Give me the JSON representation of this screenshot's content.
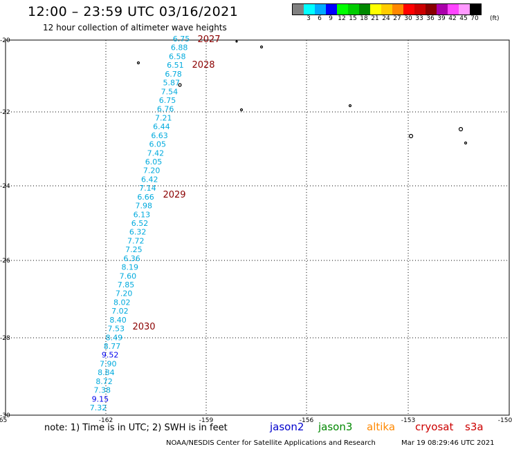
{
  "title": "12:00 – 23:59 UTC 03/16/2021",
  "subtitle": "12 hour collection of altimeter wave heights",
  "legend": {
    "colors": [
      "#808080",
      "#00ffff",
      "#00aaff",
      "#0000ff",
      "#00ff00",
      "#00cc00",
      "#008800",
      "#ffff00",
      "#ffcc00",
      "#ff8800",
      "#ff0000",
      "#cc0000",
      "#880000",
      "#aa00aa",
      "#ff44ff",
      "#ff99ff",
      "#000000"
    ],
    "labels": [
      "",
      "3",
      "6",
      "9",
      "12",
      "15",
      "18",
      "21",
      "24",
      "27",
      "30",
      "33",
      "36",
      "39",
      "42",
      "45",
      "70"
    ],
    "unit": "(ft)"
  },
  "axes": {
    "lon_labels": [
      "-165",
      "-162",
      "-159",
      "-156",
      "-153",
      "-150"
    ],
    "lat_labels": [
      "-20",
      "-22",
      "-24",
      "-26",
      "-28",
      "-30"
    ]
  },
  "time_labels": [
    "2027",
    "2028",
    "2029",
    "2030"
  ],
  "swh_values": [
    "6.75",
    "6.88",
    "6.58",
    "6.51",
    "6.78",
    "5.87",
    "7.54",
    "6.75",
    "6.76",
    "7.21",
    "6.44",
    "6.63",
    "6.05",
    "7.42",
    "6.05",
    "7.20",
    "6.42",
    "7.14",
    "6.66",
    "7.98",
    "6.13",
    "6.52",
    "6.32",
    "7.72",
    "7.25",
    "6.36",
    "8.19",
    "7.60",
    "7.85",
    "7.20",
    "8.02",
    "7.02",
    "8.40",
    "7.53",
    "8.49",
    "8.77",
    "9.52",
    "7.90",
    "8.84",
    "8.72",
    "7.38",
    "9.15",
    "7.32"
  ],
  "note": "note: 1) Time is in UTC; 2) SWH is in feet",
  "satellites": [
    "jason2",
    "jason3",
    "altika",
    "cryosat",
    "s3a"
  ],
  "credit": "NOAA/NESDIS Center for Satellite Applications and Research",
  "timestamp": "Mar 19 08:29:46 UTC 2021"
}
